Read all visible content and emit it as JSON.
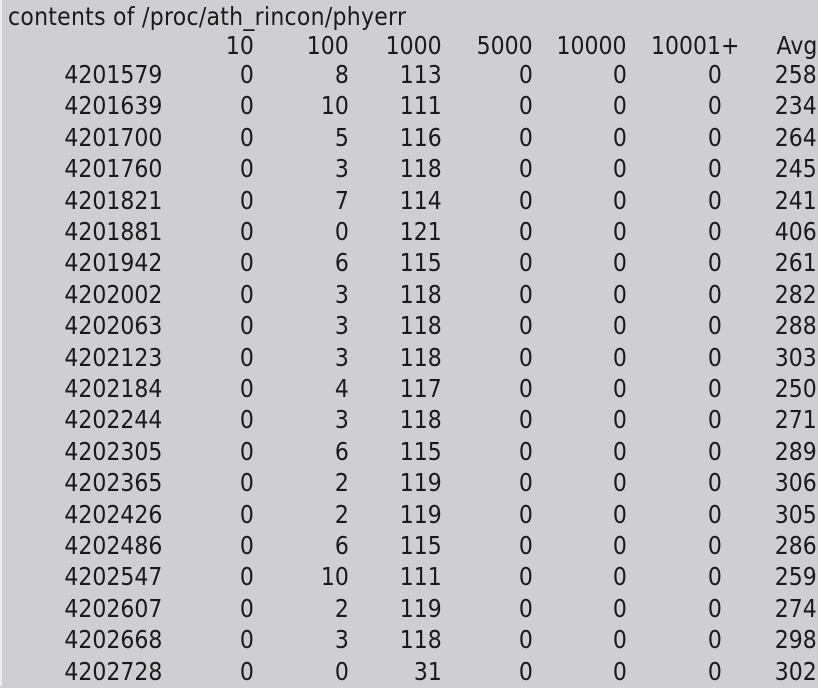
{
  "title": "contents of /proc/ath_rincon/phyerr",
  "columns": [
    "",
    "10",
    "100",
    "1000",
    "5000",
    "10000",
    "10001+",
    "Avg"
  ],
  "rows": [
    [
      "4201579",
      "0",
      "8",
      "113",
      "0",
      "0",
      "0",
      "258"
    ],
    [
      "4201639",
      "0",
      "10",
      "111",
      "0",
      "0",
      "0",
      "234"
    ],
    [
      "4201700",
      "0",
      "5",
      "116",
      "0",
      "0",
      "0",
      "264"
    ],
    [
      "4201760",
      "0",
      "3",
      "118",
      "0",
      "0",
      "0",
      "245"
    ],
    [
      "4201821",
      "0",
      "7",
      "114",
      "0",
      "0",
      "0",
      "241"
    ],
    [
      "4201881",
      "0",
      "0",
      "121",
      "0",
      "0",
      "0",
      "406"
    ],
    [
      "4201942",
      "0",
      "6",
      "115",
      "0",
      "0",
      "0",
      "261"
    ],
    [
      "4202002",
      "0",
      "3",
      "118",
      "0",
      "0",
      "0",
      "282"
    ],
    [
      "4202063",
      "0",
      "3",
      "118",
      "0",
      "0",
      "0",
      "288"
    ],
    [
      "4202123",
      "0",
      "3",
      "118",
      "0",
      "0",
      "0",
      "303"
    ],
    [
      "4202184",
      "0",
      "4",
      "117",
      "0",
      "0",
      "0",
      "250"
    ],
    [
      "4202244",
      "0",
      "3",
      "118",
      "0",
      "0",
      "0",
      "271"
    ],
    [
      "4202305",
      "0",
      "6",
      "115",
      "0",
      "0",
      "0",
      "289"
    ],
    [
      "4202365",
      "0",
      "2",
      "119",
      "0",
      "0",
      "0",
      "306"
    ],
    [
      "4202426",
      "0",
      "2",
      "119",
      "0",
      "0",
      "0",
      "305"
    ],
    [
      "4202486",
      "0",
      "6",
      "115",
      "0",
      "0",
      "0",
      "286"
    ],
    [
      "4202547",
      "0",
      "10",
      "111",
      "0",
      "0",
      "0",
      "259"
    ],
    [
      "4202607",
      "0",
      "2",
      "119",
      "0",
      "0",
      "0",
      "274"
    ],
    [
      "4202668",
      "0",
      "3",
      "118",
      "0",
      "0",
      "0",
      "298"
    ],
    [
      "4202728",
      "0",
      "0",
      "31",
      "0",
      "0",
      "0",
      "302"
    ]
  ]
}
